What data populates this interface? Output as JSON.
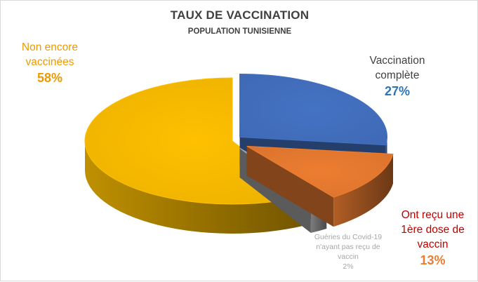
{
  "title": "TAUX DE VACCINATION",
  "subtitle": "POPULATION TUNISIENNE",
  "chart_data": {
    "type": "pie",
    "title": "TAUX DE VACCINATION",
    "subtitle": "POPULATION TUNISIENNE",
    "style": "3d-exploded",
    "slices": [
      {
        "label": "Vaccination complète",
        "value": 27,
        "display": "27%",
        "color": "#4472c4",
        "text_color": "#2e75b6"
      },
      {
        "label": "Ont reçu une 1ère dose de vaccin",
        "value": 13,
        "display": "13%",
        "color": "#ed7d31",
        "text_color": "#c00000",
        "pct_color": "#ed7d31"
      },
      {
        "label": "Guéries du Covid-19 n'ayant pas reçu de vaccin",
        "value": 2,
        "display": "2%",
        "color": "#a5a5a5",
        "text_color": "#a6a6a6"
      },
      {
        "label": "Non encore vaccinées",
        "value": 58,
        "display": "58%",
        "color": "#ffc000",
        "text_color": "#ed9a00"
      }
    ],
    "label_lines": {
      "complete": [
        "Vaccination",
        "complète"
      ],
      "first_dose": [
        "Ont reçu une",
        "1ère dose de",
        "vaccin"
      ],
      "recovered": [
        "Guéries du Covid-19",
        "n'ayant  pas reçu de",
        "vaccin"
      ],
      "unvaccinated": [
        "Non encore",
        "vaccinées"
      ]
    }
  }
}
